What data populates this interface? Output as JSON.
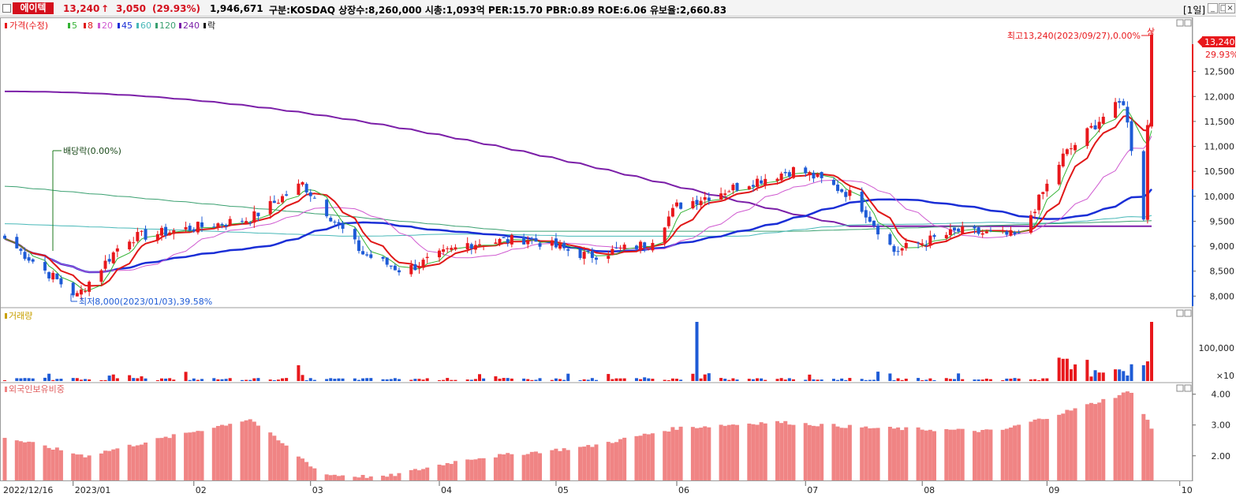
{
  "header": {
    "stock_name": "에이텍",
    "price": "13,240",
    "change": "3,050",
    "change_pct": "(29.93%)",
    "volume": "1,946,671",
    "info": "구분:KOSDAQ 상장수:8,260,000 시총:1,093억 PER:15.70 PBR:0.89 ROE:6.06 유보율:2,660.83",
    "period_button": "[1일]",
    "min_icon": "minimize-icon",
    "max_icon": "maximize-icon",
    "close_icon": "close-icon"
  },
  "legend": {
    "price": "가격(수정)",
    "ma5": "5",
    "ma8": "8",
    "ma20": "20",
    "ma45": "45",
    "ma60": "60",
    "ma120": "120",
    "ma240": "240",
    "drop": "락"
  },
  "annotations": {
    "high": "최고13,240(2023/09/27),0.00%",
    "high_tag": "상",
    "low": "최저8,000(2023/01/03),39.58%",
    "dividend": "배당락(0.00%)",
    "price_tag": "13,240",
    "pct_tag": "29.93%"
  },
  "volume_panel": {
    "label": "거래량",
    "ticks": [
      "100,000",
      "×10"
    ]
  },
  "foreign_panel": {
    "label": "외국인보유비중",
    "ticks": [
      "4.00",
      "3.00",
      "2.00"
    ]
  },
  "price_ticks": [
    "12,500",
    "12,000",
    "11,500",
    "11,000",
    "10,500",
    "10,000",
    "9,500",
    "9,000",
    "8,500",
    "8,000"
  ],
  "x_labels": [
    "2022/12/16",
    "2023/01",
    "02",
    "03",
    "04",
    "05",
    "06",
    "07",
    "08",
    "09",
    "10"
  ],
  "colors": {
    "up": "#e8181c",
    "down": "#1e5bd6",
    "ma5": "#33b233",
    "ma8": "#e01818",
    "ma20": "#cf59d0",
    "ma45": "#1a2ed6",
    "ma60": "#48b8b8",
    "ma120": "#3aa070",
    "ma240": "#7b1fa8",
    "foreign": "#f08484"
  },
  "chart_data": {
    "type": "candlestick",
    "y_range_price": [
      7800,
      13300
    ],
    "x_range": [
      "2022/12/16",
      "2023/09/27"
    ],
    "price_anchors": [
      {
        "date": "2022/12/16",
        "close": 9150
      },
      {
        "date": "2023/01/03",
        "close": 8000
      },
      {
        "date": "2023/01/15",
        "close": 9150
      },
      {
        "date": "2023/02/15",
        "close": 9550
      },
      {
        "date": "2023/02/28",
        "close": 10250
      },
      {
        "date": "2023/03/15",
        "close": 8850
      },
      {
        "date": "2023/03/25",
        "close": 8500
      },
      {
        "date": "2023/04/10",
        "close": 9050
      },
      {
        "date": "2023/04/25",
        "close": 9150
      },
      {
        "date": "2023/05/10",
        "close": 8800
      },
      {
        "date": "2023/05/25",
        "close": 9050
      },
      {
        "date": "2023/06/01",
        "close": 9800
      },
      {
        "date": "2023/06/20",
        "close": 10300
      },
      {
        "date": "2023/07/01",
        "close": 10550
      },
      {
        "date": "2023/07/15",
        "close": 10000
      },
      {
        "date": "2023/07/25",
        "close": 8900
      },
      {
        "date": "2023/08/10",
        "close": 9300
      },
      {
        "date": "2023/08/25",
        "close": 9200
      },
      {
        "date": "2023/09/05",
        "close": 10800
      },
      {
        "date": "2023/09/15",
        "close": 11600
      },
      {
        "date": "2023/09/20",
        "close": 11900
      },
      {
        "date": "2023/09/25",
        "close": 9600
      },
      {
        "date": "2023/09/27",
        "close": 13240
      }
    ],
    "volume_spikes": [
      {
        "date": "2023/02/27",
        "value": "moderate"
      },
      {
        "date": "2023/06/06",
        "value": "high"
      },
      {
        "date": "2023/09/27",
        "value": "high"
      }
    ],
    "foreign_ratio_range": [
      1.2,
      4.3
    ],
    "foreign_ratio_anchors": [
      {
        "date": "2022/12/16",
        "value": 2.6
      },
      {
        "date": "2023/01/05",
        "value": 2.0
      },
      {
        "date": "2023/02/15",
        "value": 3.2
      },
      {
        "date": "2023/03/05",
        "value": 1.4
      },
      {
        "date": "2023/03/20",
        "value": 1.3
      },
      {
        "date": "2023/04/10",
        "value": 1.9
      },
      {
        "date": "2023/05/10",
        "value": 2.3
      },
      {
        "date": "2023/06/01",
        "value": 2.9
      },
      {
        "date": "2023/06/25",
        "value": 3.1
      },
      {
        "date": "2023/07/20",
        "value": 2.9
      },
      {
        "date": "2023/08/20",
        "value": 2.8
      },
      {
        "date": "2023/09/10",
        "value": 3.6
      },
      {
        "date": "2023/09/22",
        "value": 4.1
      },
      {
        "date": "2023/09/27",
        "value": 2.9
      }
    ]
  }
}
